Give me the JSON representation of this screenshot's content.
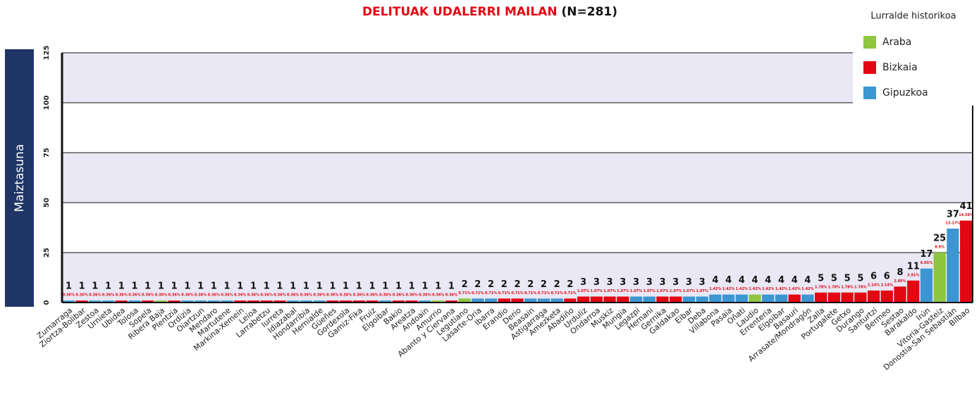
{
  "chart_data": {
    "type": "bar",
    "title": "DELITUAK UDALERRI MAILAN",
    "subtitle": "(N=281)",
    "y_label": "Maiztasuna",
    "legend_title": "Lurralde historikoa",
    "legend": [
      {
        "name": "Araba",
        "color": "#8dc63f"
      },
      {
        "name": "Bizkaia",
        "color": "#e30613"
      },
      {
        "name": "Gipuzkoa",
        "color": "#3c96d2"
      }
    ],
    "categories": [
      "Zumarraga",
      "Ziortza-Bolibar",
      "Zestoa",
      "Urnieta",
      "Ubidea",
      "Tolosa",
      "Sopela",
      "Ribera Baja",
      "Plentzia",
      "Ordizia",
      "Oiartzun",
      "Mendaro",
      "Martutene",
      "Markina-Xemein",
      "Leioa",
      "Larrabetzu",
      "Iurreta",
      "Idiazabal",
      "Hondarribia",
      "Hernialde",
      "Güeñes",
      "Gordexola",
      "Gamiz-Fika",
      "Fruiz",
      "Elgoibar",
      "Bakio",
      "Areatza",
      "Andoain",
      "Amurrio",
      "Abanto y Ciervana",
      "Legutiano",
      "Lasarte-Oria",
      "Ibarra",
      "Erandio",
      "Derio",
      "Beasain",
      "Astigarraga",
      "Amezketa",
      "Abadiño",
      "Urduliz",
      "Ondarroa",
      "Muskiz",
      "Mungia",
      "Legazpi",
      "Hernani",
      "Gernika",
      "Galdakao",
      "Eibar",
      "Deba",
      "Villabona",
      "Pasaia",
      "Oñati",
      "Laudio",
      "Errenteria",
      "Elgoibar",
      "Basauri",
      "Arrasate/Mondragón",
      "Zalla",
      "Portugalete",
      "Getxo",
      "Durango",
      "Santurtzi",
      "Bermeo",
      "Sestao",
      "Barakaldo",
      "Irún",
      "Vitoria-Gasteiz",
      "Donostia-San Sebastián",
      "Bilbao"
    ],
    "values": [
      1,
      1,
      1,
      1,
      1,
      1,
      1,
      1,
      1,
      1,
      1,
      1,
      1,
      1,
      1,
      1,
      1,
      1,
      1,
      1,
      1,
      1,
      1,
      1,
      1,
      1,
      1,
      1,
      1,
      1,
      2,
      2,
      2,
      2,
      2,
      2,
      2,
      2,
      2,
      3,
      3,
      3,
      3,
      3,
      3,
      3,
      3,
      3,
      3,
      4,
      4,
      4,
      4,
      4,
      4,
      4,
      4,
      5,
      5,
      5,
      5,
      6,
      6,
      8,
      11,
      17,
      25,
      37,
      41
    ],
    "percent_labels": [
      "0.36%",
      "0.36%",
      "0.36%",
      "0.36%",
      "0.36%",
      "0.36%",
      "0.36%",
      "0.36%",
      "0.36%",
      "0.36%",
      "0.36%",
      "0.36%",
      "0.36%",
      "0.36%",
      "0.36%",
      "0.36%",
      "0.36%",
      "0.36%",
      "0.36%",
      "0.36%",
      "0.36%",
      "0.36%",
      "0.36%",
      "0.36%",
      "0.36%",
      "0.36%",
      "0.36%",
      "0.36%",
      "0.36%",
      "0.36%",
      "0.71%",
      "0.71%",
      "0.71%",
      "0.71%",
      "0.71%",
      "0.71%",
      "0.71%",
      "0.71%",
      "0.71%",
      "1.07%",
      "1.07%",
      "1.07%",
      "1.07%",
      "1.07%",
      "1.07%",
      "1.07%",
      "1.07%",
      "1.07%",
      "1.07%",
      "1.42%",
      "1.42%",
      "1.42%",
      "1.42%",
      "1.42%",
      "1.42%",
      "1.42%",
      "1.42%",
      "1.78%",
      "1.78%",
      "1.78%",
      "1.78%",
      "2.14%",
      "2.14%",
      "2.85%",
      "3.91%",
      "6.05%",
      "8.9%",
      "13.17%",
      "14.59%"
    ],
    "bar_groups": [
      2,
      1,
      2,
      2,
      1,
      2,
      1,
      0,
      1,
      2,
      2,
      2,
      2,
      1,
      1,
      1,
      1,
      2,
      2,
      2,
      1,
      1,
      1,
      1,
      2,
      1,
      1,
      2,
      0,
      1,
      0,
      2,
      2,
      1,
      1,
      2,
      2,
      2,
      1,
      1,
      1,
      1,
      1,
      2,
      2,
      1,
      1,
      2,
      2,
      2,
      2,
      2,
      0,
      2,
      2,
      1,
      2,
      1,
      1,
      1,
      1,
      1,
      1,
      1,
      1,
      2,
      0,
      2,
      1
    ],
    "ylim": [
      0,
      125
    ],
    "yticks": [
      0,
      25,
      50,
      75,
      100,
      125
    ],
    "grid": true
  }
}
